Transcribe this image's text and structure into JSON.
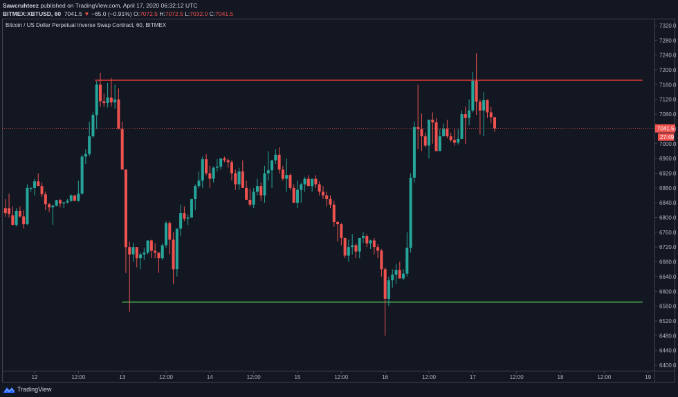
{
  "header": {
    "author": "Sawcruhteez",
    "published_text": " published on TradingView.com, April 17, 2020 06:32:12 UTC",
    "symbol": "BITMEX:XBTUSD, 60",
    "last": "7041.5",
    "change_arrow": "▼",
    "change": "−65.0 (−0.91%)",
    "o_label": "O:",
    "o_value": "7072.5",
    "h_label": "H:",
    "h_value": "7072.5",
    "l_label": "L:",
    "l_value": "7032.0",
    "c_label": "C:",
    "c_value": "7041.5"
  },
  "chart_title": "Bitcoin / US Dollar Perpetual Inverse Swap Contract, 60, BITMEX",
  "footer": {
    "brand": "TradingView"
  },
  "colors": {
    "background": "#131722",
    "up": "#26a69a",
    "down": "#ef5350",
    "resistance_line": "#e53935",
    "support_line": "#4caf50",
    "grid_border": "#434651"
  },
  "price_badge": {
    "price": "7041.5",
    "countdown": "27:49"
  },
  "chart_data": {
    "type": "candlestick",
    "title": "Bitcoin / US Dollar Perpetual Inverse Swap Contract, 60, BITMEX",
    "symbol": "BITMEX:XBTUSD",
    "interval": "60",
    "xlabel": "",
    "ylabel": "",
    "ylim": [
      6380,
      7340
    ],
    "y_ticks": [
      7320,
      7280,
      7240,
      7200,
      7160,
      7120,
      7080,
      7040,
      7000,
      6960,
      6920,
      6880,
      6840,
      6800,
      6760,
      6720,
      6680,
      6640,
      6600,
      6560,
      6520,
      6480,
      6440,
      6400
    ],
    "y_tick_labels": [
      "7320.0",
      "7280.0",
      "7240.0",
      "7200.0",
      "7160.0",
      "7120.0",
      "7080.0",
      "7040.0",
      "7000.0",
      "6960.0",
      "6920.0",
      "6880.0",
      "6840.0",
      "6800.0",
      "6760.0",
      "6720.0",
      "6680.0",
      "6640.0",
      "6600.0",
      "6560.0",
      "6520.0",
      "6480.0",
      "6440.0",
      "6400.0"
    ],
    "x_tick_labels": [
      "12",
      "12:00",
      "13",
      "12:00",
      "14",
      "12:00",
      "15",
      "12:00",
      "16",
      "12:00",
      "17",
      "12:00",
      "18",
      "12:00",
      "19"
    ],
    "x_tick_hours": [
      0,
      12,
      24,
      36,
      48,
      60,
      72,
      84,
      96,
      108,
      120,
      132,
      144,
      156,
      168
    ],
    "grid": false,
    "current_price": 7041.5,
    "horizontal_lines": [
      {
        "name": "resistance",
        "price": 7172,
        "from_hour": 16.5,
        "to_hour": 166.5,
        "color": "#e53935"
      },
      {
        "name": "support",
        "price": 6571,
        "from_hour": 24.0,
        "to_hour": 166.5,
        "color": "#4caf50"
      }
    ],
    "candles_note": "hour = hours from Apr 12 00:00 UTC; values [hour, open, high, low, close] estimated from pixels",
    "candles": [
      [
        -8,
        6825,
        6850,
        6802,
        6812
      ],
      [
        -7,
        6825,
        6865,
        6800,
        6810
      ],
      [
        -6,
        6806,
        6830,
        6780,
        6780
      ],
      [
        -5,
        6780,
        6825,
        6776,
        6818
      ],
      [
        -4,
        6818,
        6830,
        6800,
        6803
      ],
      [
        -3,
        6803,
        6820,
        6770,
        6782
      ],
      [
        -2,
        6782,
        6890,
        6780,
        6880
      ],
      [
        -1,
        6880,
        6882,
        6870,
        6880
      ],
      [
        0,
        6880,
        6905,
        6860,
        6898
      ],
      [
        1,
        6898,
        6920,
        6885,
        6885
      ],
      [
        2,
        6885,
        6895,
        6855,
        6863
      ],
      [
        3,
        6863,
        6870,
        6820,
        6836
      ],
      [
        4,
        6836,
        6840,
        6815,
        6828
      ],
      [
        5,
        6828,
        6835,
        6780,
        6832
      ],
      [
        6,
        6832,
        6848,
        6830,
        6847
      ],
      [
        7,
        6847,
        6850,
        6828,
        6838
      ],
      [
        8,
        6838,
        6842,
        6825,
        6841
      ],
      [
        9,
        6841,
        6850,
        6838,
        6845
      ],
      [
        10,
        6845,
        6862,
        6843,
        6860
      ],
      [
        11,
        6860,
        6860,
        6845,
        6845
      ],
      [
        12,
        6845,
        6900,
        6843,
        6865
      ],
      [
        13,
        6865,
        6970,
        6862,
        6965
      ],
      [
        14,
        6965,
        6985,
        6945,
        6972
      ],
      [
        15,
        6972,
        7060,
        6966,
        7020
      ],
      [
        16,
        7020,
        7085,
        7016,
        7078
      ],
      [
        17,
        7078,
        7170,
        7040,
        7160
      ],
      [
        18,
        7160,
        7192,
        7100,
        7115
      ],
      [
        19,
        7115,
        7135,
        7100,
        7110
      ],
      [
        20,
        7110,
        7165,
        7098,
        7125
      ],
      [
        21,
        7125,
        7178,
        7100,
        7112
      ],
      [
        22,
        7112,
        7160,
        7095,
        7120
      ],
      [
        23,
        7120,
        7150,
        7060,
        7040
      ],
      [
        24,
        7040,
        7060,
        6990,
        6930
      ],
      [
        25,
        6930,
        6915,
        6650,
        6720
      ],
      [
        26,
        6720,
        6735,
        6545,
        6700
      ],
      [
        27,
        6700,
        6732,
        6680,
        6720
      ],
      [
        28,
        6720,
        6720,
        6665,
        6690
      ],
      [
        29,
        6690,
        6705,
        6660,
        6700
      ],
      [
        30,
        6700,
        6718,
        6685,
        6705
      ],
      [
        31,
        6705,
        6738,
        6700,
        6738
      ],
      [
        32,
        6738,
        6740,
        6690,
        6710
      ],
      [
        33,
        6710,
        6730,
        6690,
        6705
      ],
      [
        34,
        6705,
        6700,
        6650,
        6690
      ],
      [
        35,
        6690,
        6730,
        6685,
        6725
      ],
      [
        36,
        6725,
        6790,
        6718,
        6785
      ],
      [
        37,
        6785,
        6790,
        6700,
        6740
      ],
      [
        38,
        6740,
        6760,
        6620,
        6660
      ],
      [
        39,
        6660,
        6760,
        6640,
        6770
      ],
      [
        40,
        6770,
        6835,
        6750,
        6812
      ],
      [
        41,
        6812,
        6830,
        6790,
        6797
      ],
      [
        42,
        6797,
        6808,
        6780,
        6800
      ],
      [
        43,
        6800,
        6848,
        6800,
        6850
      ],
      [
        44,
        6850,
        6890,
        6820,
        6885
      ],
      [
        45,
        6885,
        6925,
        6880,
        6900
      ],
      [
        46,
        6900,
        6965,
        6880,
        6958
      ],
      [
        47,
        6958,
        6972,
        6915,
        6920
      ],
      [
        48,
        6920,
        6940,
        6880,
        6905
      ],
      [
        49,
        6905,
        6938,
        6895,
        6935
      ],
      [
        50,
        6935,
        6958,
        6925,
        6938
      ],
      [
        51,
        6938,
        6960,
        6930,
        6960
      ],
      [
        52,
        6960,
        6965,
        6950,
        6955
      ],
      [
        53,
        6955,
        6960,
        6935,
        6950
      ],
      [
        54,
        6950,
        6955,
        6900,
        6920
      ],
      [
        55,
        6920,
        6930,
        6875,
        6890
      ],
      [
        56,
        6890,
        6935,
        6875,
        6925
      ],
      [
        57,
        6925,
        6955,
        6895,
        6880
      ],
      [
        58,
        6880,
        6900,
        6850,
        6848
      ],
      [
        59,
        6848,
        6878,
        6830,
        6835
      ],
      [
        60,
        6835,
        6880,
        6825,
        6870
      ],
      [
        61,
        6870,
        6905,
        6860,
        6885
      ],
      [
        62,
        6885,
        6895,
        6845,
        6860
      ],
      [
        63,
        6860,
        6940,
        6840,
        6920
      ],
      [
        64,
        6920,
        6980,
        6900,
        6928
      ],
      [
        65,
        6928,
        6950,
        6880,
        6955
      ],
      [
        66,
        6955,
        6985,
        6945,
        6970
      ],
      [
        67,
        6970,
        6990,
        6920,
        6930
      ],
      [
        68,
        6930,
        6940,
        6900,
        6905
      ],
      [
        69,
        6905,
        6960,
        6870,
        6915
      ],
      [
        70,
        6915,
        6920,
        6875,
        6880
      ],
      [
        71,
        6880,
        6890,
        6850,
        6840
      ],
      [
        72,
        6840,
        6900,
        6825,
        6875
      ],
      [
        73,
        6875,
        6895,
        6840,
        6890
      ],
      [
        74,
        6890,
        6910,
        6870,
        6905
      ],
      [
        75,
        6905,
        6915,
        6890,
        6885
      ],
      [
        76,
        6885,
        6905,
        6870,
        6905
      ],
      [
        77,
        6905,
        6915,
        6880,
        6890
      ],
      [
        78,
        6890,
        6898,
        6860,
        6870
      ],
      [
        79,
        6870,
        6885,
        6850,
        6860
      ],
      [
        80,
        6860,
        6870,
        6830,
        6850
      ],
      [
        81,
        6850,
        6860,
        6825,
        6835
      ],
      [
        82,
        6835,
        6845,
        6775,
        6788
      ],
      [
        83,
        6788,
        6790,
        6735,
        6782
      ],
      [
        84,
        6782,
        6785,
        6725,
        6745
      ],
      [
        85,
        6745,
        6745,
        6690,
        6697
      ],
      [
        86,
        6697,
        6740,
        6680,
        6720
      ],
      [
        87,
        6720,
        6755,
        6700,
        6725
      ],
      [
        88,
        6725,
        6730,
        6690,
        6708
      ],
      [
        89,
        6708,
        6740,
        6690,
        6745
      ],
      [
        90,
        6745,
        6760,
        6730,
        6750
      ],
      [
        91,
        6750,
        6755,
        6720,
        6730
      ],
      [
        92,
        6730,
        6740,
        6715,
        6738
      ],
      [
        93,
        6738,
        6745,
        6700,
        6720
      ],
      [
        94,
        6720,
        6728,
        6690,
        6710
      ],
      [
        95,
        6710,
        6715,
        6640,
        6660
      ],
      [
        96,
        6660,
        6665,
        6480,
        6580
      ],
      [
        97,
        6580,
        6640,
        6560,
        6630
      ],
      [
        98,
        6630,
        6660,
        6610,
        6645
      ],
      [
        99,
        6645,
        6675,
        6620,
        6658
      ],
      [
        100,
        6658,
        6680,
        6635,
        6635
      ],
      [
        101,
        6635,
        6660,
        6630,
        6648
      ],
      [
        102,
        6648,
        6760,
        6640,
        6718
      ],
      [
        103,
        6718,
        6920,
        6705,
        6908
      ],
      [
        104,
        6908,
        7060,
        6895,
        7045
      ],
      [
        105,
        7045,
        7160,
        6985,
        7040
      ],
      [
        106,
        7040,
        7082,
        6980,
        7020
      ],
      [
        107,
        7020,
        7030,
        6990,
        6995
      ],
      [
        108,
        6995,
        7035,
        6960,
        7065
      ],
      [
        109,
        7065,
        7085,
        7000,
        7058
      ],
      [
        110,
        7058,
        7070,
        7005,
        6980
      ],
      [
        111,
        6980,
        7040,
        6985,
        7020
      ],
      [
        112,
        7020,
        7055,
        7020,
        7040
      ],
      [
        113,
        7040,
        7065,
        7015,
        7020
      ],
      [
        114,
        7020,
        7030,
        7005,
        7010
      ],
      [
        115,
        7010,
        7040,
        6995,
        7003
      ],
      [
        116,
        7003,
        7040,
        6998,
        7013
      ],
      [
        117,
        7013,
        7090,
        7012,
        7080
      ],
      [
        118,
        7080,
        7100,
        7000,
        7070
      ],
      [
        119,
        7070,
        7120,
        7050,
        7090
      ],
      [
        120,
        7090,
        7195,
        7085,
        7170
      ],
      [
        121,
        7170,
        7245,
        7078,
        7114
      ],
      [
        122,
        7114,
        7120,
        7025,
        7090
      ],
      [
        123,
        7090,
        7140,
        7020,
        7118
      ],
      [
        124,
        7118,
        7120,
        7070,
        7085
      ],
      [
        125,
        7085,
        7100,
        7055,
        7072
      ],
      [
        126,
        7072,
        7072,
        7032,
        7041.5
      ]
    ]
  }
}
